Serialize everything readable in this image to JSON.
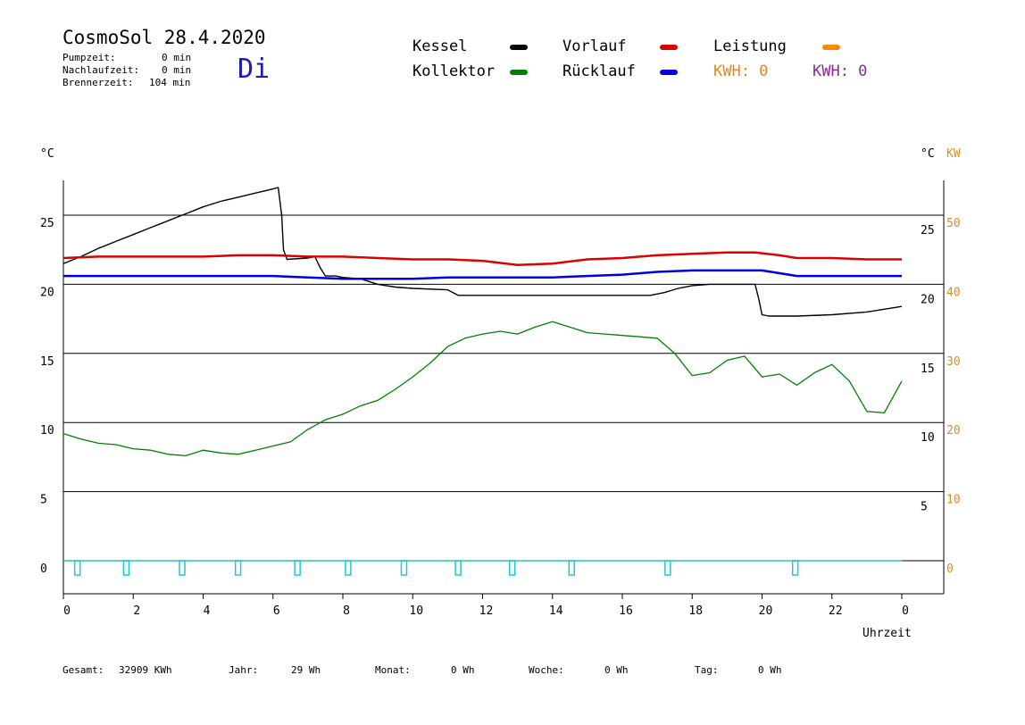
{
  "header": {
    "title": "CosmoSol 28.4.2020",
    "day": "Di",
    "info": [
      {
        "label": "Pumpzeit:",
        "value": "0 min"
      },
      {
        "label": "Nachlaufzeit:",
        "value": "0 min"
      },
      {
        "label": "Brennerzeit:",
        "value": "104 min"
      }
    ]
  },
  "legend": [
    {
      "label": "Kessel",
      "color": "#000000"
    },
    {
      "label": "Vorlauf",
      "color": "#dd0000"
    },
    {
      "label": "Leistung",
      "color": "#ff8800"
    },
    {
      "label": "Kollektor",
      "color": "#008000"
    },
    {
      "label": "Rücklauf",
      "color": "#0000dd"
    }
  ],
  "kwh": [
    {
      "text": "KWH: 0",
      "color": "#e08a1e"
    },
    {
      "text": "KWH: 0",
      "color": "#8a2a8a"
    }
  ],
  "axes": {
    "left_unit": "°C",
    "right_unit": "°C",
    "right_kw_unit": "KW",
    "x_label": "Uhrzeit",
    "x_ticks": [
      "0",
      "2",
      "4",
      "6",
      "8",
      "10",
      "12",
      "14",
      "16",
      "18",
      "20",
      "22",
      "0"
    ],
    "left_ticks": [
      "25",
      "20",
      "15",
      "10",
      "5",
      "0"
    ],
    "right_c_ticks": [
      "25",
      "20",
      "15",
      "10",
      "5"
    ],
    "right_kw_ticks": [
      "50",
      "40",
      "30",
      "20",
      "10",
      "0"
    ]
  },
  "footer": [
    {
      "label": "Gesamt:",
      "value": "32909 KWh"
    },
    {
      "label": "Jahr:",
      "value": "29 Wh"
    },
    {
      "label": "Monat:",
      "value": "0 Wh"
    },
    {
      "label": "Woche:",
      "value": "0 Wh"
    },
    {
      "label": "Tag:",
      "value": "0 Wh"
    }
  ],
  "chart_data": {
    "type": "line",
    "xlabel": "Uhrzeit",
    "ylabel": "°C",
    "x_unit": "hour",
    "xlim": [
      0,
      24
    ],
    "ylim": [
      -2,
      27.5
    ],
    "y2_label": "KW",
    "y2lim": [
      -4,
      55
    ],
    "grid": true,
    "series": [
      {
        "name": "Kessel",
        "color": "#000000",
        "x": [
          0,
          0.5,
          1,
          1.5,
          2,
          2.5,
          3,
          3.5,
          4,
          4.5,
          5,
          5.5,
          6,
          6.15,
          6.25,
          6.3,
          6.4,
          7,
          7.2,
          7.35,
          7.5,
          7.8,
          8,
          8.5,
          9,
          9.5,
          10,
          11,
          11.3,
          12,
          13,
          14,
          15,
          16,
          16.5,
          16.8,
          17.2,
          17.6,
          18,
          18.5,
          19,
          19.2,
          19.8,
          19.9,
          20,
          20.2,
          21,
          22,
          23,
          24
        ],
        "values": [
          21.5,
          22,
          22.6,
          23.1,
          23.6,
          24.1,
          24.6,
          25.1,
          25.6,
          26,
          26.3,
          26.6,
          26.9,
          27,
          25,
          22.5,
          21.8,
          21.9,
          22,
          21.2,
          20.6,
          20.6,
          20.5,
          20.4,
          20,
          19.8,
          19.7,
          19.6,
          19.2,
          19.2,
          19.2,
          19.2,
          19.2,
          19.2,
          19.2,
          19.2,
          19.4,
          19.7,
          19.9,
          20,
          20,
          20,
          20,
          19,
          17.8,
          17.7,
          17.7,
          17.8,
          18,
          18.4
        ]
      },
      {
        "name": "Vorlauf",
        "color": "#dd0000",
        "x": [
          0,
          1,
          2,
          3,
          4,
          5,
          6,
          7,
          8,
          9,
          10,
          11,
          12,
          13,
          14,
          15,
          16,
          17,
          18,
          19,
          19.8,
          20.5,
          21,
          22,
          23,
          24
        ],
        "values": [
          21.9,
          22,
          22,
          22,
          22,
          22.1,
          22.1,
          22,
          22,
          21.9,
          21.8,
          21.8,
          21.7,
          21.4,
          21.5,
          21.8,
          21.9,
          22.1,
          22.2,
          22.3,
          22.3,
          22.1,
          21.9,
          21.9,
          21.8,
          21.8
        ]
      },
      {
        "name": "Rücklauf",
        "color": "#0000dd",
        "x": [
          0,
          1,
          2,
          3,
          4,
          5,
          6,
          7,
          8,
          9,
          10,
          11,
          12,
          13,
          14,
          15,
          16,
          17,
          18,
          19,
          20,
          21,
          22,
          23,
          24
        ],
        "values": [
          20.6,
          20.6,
          20.6,
          20.6,
          20.6,
          20.6,
          20.6,
          20.5,
          20.4,
          20.4,
          20.4,
          20.5,
          20.5,
          20.5,
          20.5,
          20.6,
          20.7,
          20.9,
          21,
          21,
          21,
          20.6,
          20.6,
          20.6,
          20.6
        ]
      },
      {
        "name": "Kollektor",
        "color": "#008000",
        "x": [
          0,
          0.5,
          1,
          1.5,
          2,
          2.5,
          3,
          3.5,
          4,
          4.5,
          5,
          5.5,
          6,
          6.5,
          7,
          7.5,
          8,
          8.5,
          9,
          9.5,
          10,
          10.5,
          11,
          11.5,
          12,
          12.5,
          13,
          13.5,
          14,
          14.5,
          15,
          15.5,
          16,
          16.5,
          17,
          17.5,
          18,
          18.5,
          19,
          19.5,
          20,
          20.5,
          21,
          21.5,
          22,
          22.5,
          23,
          23.5,
          24
        ],
        "values": [
          9.2,
          8.8,
          8.5,
          8.4,
          8.1,
          8,
          7.7,
          7.6,
          8,
          7.8,
          7.7,
          8,
          8.3,
          8.6,
          9.5,
          10.2,
          10.6,
          11.2,
          11.6,
          12.4,
          13.3,
          14.3,
          15.5,
          16.1,
          16.4,
          16.6,
          16.4,
          16.9,
          17.3,
          16.9,
          16.5,
          16.4,
          16.3,
          16.2,
          16.1,
          15,
          13.4,
          13.6,
          14.5,
          14.8,
          13.3,
          13.5,
          12.7,
          13.6,
          14.2,
          13,
          10.8,
          10.7,
          13
        ]
      }
    ],
    "bars": {
      "name": "Brenner",
      "color": "#20c8d0",
      "x": [
        0.4,
        1.8,
        3.4,
        5.0,
        6.7,
        8.15,
        9.75,
        11.3,
        12.85,
        14.55,
        17.3,
        20.95
      ]
    }
  }
}
